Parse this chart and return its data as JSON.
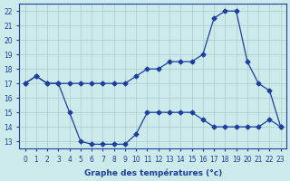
{
  "xlabel": "Graphe des températures (°c)",
  "line1_x": [
    0,
    1,
    2,
    3,
    4,
    5,
    6,
    7,
    8,
    9,
    10,
    11,
    12,
    13,
    14,
    15,
    16,
    17,
    18,
    19,
    20,
    21,
    22,
    23
  ],
  "line1_y": [
    17.0,
    17.5,
    17.0,
    17.0,
    17.0,
    17.0,
    17.0,
    17.0,
    17.0,
    17.0,
    17.5,
    18.0,
    18.0,
    18.5,
    18.5,
    18.5,
    19.0,
    21.5,
    22.0,
    22.0,
    18.5,
    17.0,
    16.5,
    14.0
  ],
  "line2_x": [
    0,
    1,
    2,
    3,
    4,
    5,
    6,
    7,
    8,
    9,
    10,
    11,
    12,
    13,
    14,
    15,
    16,
    17,
    18,
    19,
    20,
    21,
    22,
    23
  ],
  "line2_y": [
    17.0,
    17.5,
    17.0,
    17.0,
    15.0,
    13.0,
    12.8,
    12.8,
    12.8,
    12.8,
    13.5,
    15.0,
    15.0,
    15.0,
    15.0,
    15.0,
    14.5,
    14.0,
    14.0,
    14.0,
    14.0,
    14.0,
    14.5,
    14.0
  ],
  "line_color": "#1c3fa0",
  "bg_color": "#cceaea",
  "grid_color": "#aacccc",
  "ylim": [
    12.5,
    22.5
  ],
  "yticks": [
    13,
    14,
    15,
    16,
    17,
    18,
    19,
    20,
    21,
    22
  ],
  "xticks": [
    0,
    1,
    2,
    3,
    4,
    5,
    6,
    7,
    8,
    9,
    10,
    11,
    12,
    13,
    14,
    15,
    16,
    17,
    18,
    19,
    20,
    21,
    22,
    23
  ],
  "tick_fontsize": 5.5,
  "xlabel_fontsize": 6.5
}
